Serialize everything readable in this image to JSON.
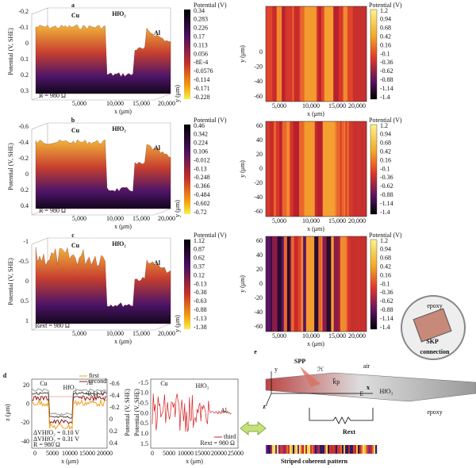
{
  "surfaces": [
    {
      "panel": "a",
      "y_axis_title": "Potential (V, SHE)",
      "y_ticks": [
        "-0.2",
        "-0.1",
        "0",
        "0.1",
        "0.2",
        "0.3"
      ],
      "materials": [
        "Cu",
        "HfO₂",
        "Al"
      ],
      "resistance": "R = 980 Ω",
      "x_ticks": [
        "5,000",
        "10,000",
        "15,000",
        "20,000"
      ],
      "x_axis_title": "x (μm)",
      "depth_axis_title": "y (μm)",
      "colorbar": {
        "title": "Potential (V)",
        "ticks": [
          "0.34",
          "0.283",
          "0.226",
          "0.17",
          "0.113",
          "0.056",
          "-8E-4",
          "-0.0576",
          "-0.114",
          "-0.171",
          "-0.228"
        ]
      }
    },
    {
      "panel": "b",
      "y_axis_title": "Potential (V, SHE)",
      "y_ticks": [
        "-0.6",
        "-0.4",
        "-0.2",
        "0",
        "0.2",
        "0.4"
      ],
      "materials": [
        "Cu",
        "HfO₂",
        "Al"
      ],
      "resistance": "R = 980 Ω",
      "x_ticks": [
        "5,000",
        "10,000",
        "15,000",
        "20,000"
      ],
      "x_axis_title": "x (μm)",
      "depth_axis_title": "y (μm)",
      "colorbar": {
        "title": "Potential (V)",
        "ticks": [
          "0.46",
          "0.342",
          "0.224",
          "0.106",
          "-0.012",
          "-0.13",
          "-0.248",
          "-0.366",
          "-0.484",
          "-0.602",
          "-0.72"
        ]
      }
    },
    {
      "panel": "c",
      "y_axis_title": "Potential (V, SHE)",
      "y_ticks": [
        "-1",
        "-0.5",
        "0",
        "0.5",
        "1"
      ],
      "materials": [
        "Cu",
        "HfO₂",
        "Al"
      ],
      "resistance": "Rext = 980 Ω",
      "x_ticks": [
        "5,000",
        "10,000",
        "15,000",
        "20,000"
      ],
      "x_axis_title": "x (μm)",
      "depth_axis_title": "y (μm)",
      "colorbar": {
        "title": "Potential (V)",
        "ticks": [
          "1.12",
          "0.87",
          "0.62",
          "0.37",
          "0.12",
          "-0.13",
          "-0.38",
          "-0.63",
          "-0.88",
          "-1.13",
          "-1.38"
        ]
      }
    }
  ],
  "maps": [
    {
      "y_axis_title": "y (μm)",
      "y_ticks": [
        "0",
        "-20",
        "-40",
        "-60"
      ],
      "x_ticks": [
        "5,000",
        "10,000",
        "15,000",
        "20,000"
      ],
      "x_axis_title": "x (μm)",
      "colorbar": {
        "title": "Potential (V)",
        "ticks": [
          "1.2",
          "0.94",
          "0.68",
          "0.42",
          "0.16",
          "-0.1",
          "-0.36",
          "-0.62",
          "-0.88",
          "-1.14",
          "-1.4"
        ]
      }
    },
    {
      "y_axis_title": "y (μm)",
      "y_ticks": [
        "60",
        "40",
        "20",
        "0",
        "-20",
        "-40",
        "-60"
      ],
      "x_ticks": [
        "5,000",
        "10,000",
        "15,000",
        "20,000"
      ],
      "x_axis_title": "x (μm)",
      "colorbar": {
        "title": "Potential (V)",
        "ticks": [
          "1.2",
          "0.94",
          "0.68",
          "0.42",
          "0.16",
          "-0.1",
          "-0.36",
          "-0.62",
          "-0.88",
          "-1.14",
          "-1.4"
        ]
      }
    },
    {
      "y_axis_title": "y (μm)",
      "y_ticks": [
        "60",
        "40",
        "20",
        "0",
        "-20",
        "-40",
        "-60"
      ],
      "x_ticks": [
        "5,000",
        "10,000",
        "15,000",
        "20,000"
      ],
      "x_axis_title": "x (μm)",
      "colorbar": {
        "title": "Potential (V)",
        "ticks": [
          "1.2",
          "0.94",
          "0.68",
          "0.42",
          "0.16",
          "-0.1",
          "-0.36",
          "-0.62",
          "-0.88",
          "-1.14",
          "-1.4"
        ]
      }
    }
  ],
  "panel_d": {
    "label": "d",
    "left": {
      "y_axis_title": "z (μm)",
      "y_ticks": [
        "20",
        "0",
        "-20",
        "-40"
      ],
      "y2_axis_title": "Potential (V, SHE)",
      "y2_ticks": [
        "-0.6",
        "-0.4",
        "-0.2",
        "0",
        "0.2",
        "0.4"
      ],
      "x_ticks": [
        "0",
        "5000",
        "10000",
        "15000",
        "20000"
      ],
      "x_axis_title": "x (μm)",
      "materials": [
        "Cu",
        "HfO₂",
        "Al"
      ],
      "legend": [
        "first",
        "second"
      ],
      "annotation": "-0.11 V",
      "delta_1": "ΔVHfO₂ = 0.10 V",
      "delta_2": "ΔVHfO₂ = 0.31 V",
      "resistance": "R = 980 Ω"
    },
    "right": {
      "y_axis_title": "Potential (V, SHE)",
      "y_ticks": [
        "-1.5",
        "-1.0",
        "-0.5",
        "0.0",
        "0.5",
        "1.0",
        "1.5"
      ],
      "x_ticks": [
        "0",
        "5000",
        "10000",
        "15000",
        "20000",
        "25000"
      ],
      "x_axis_title": "x (μm)",
      "materials": [
        "Cu",
        "HfO₂",
        "Al"
      ],
      "legend": [
        "third"
      ],
      "resistance": "Rext = 980 Ω"
    }
  },
  "panel_e": {
    "label": "e",
    "spp": "SPP",
    "air": "air",
    "hfo2": "HfO₂",
    "epoxy_bottom": "epoxy",
    "epoxy_top": "epoxy",
    "rext": "Rext",
    "skp": "SKP",
    "connection": "connection",
    "pattern": "Striped coherent pattern",
    "axis_y": "y",
    "axis_x": "x",
    "axis_z": "z",
    "field_h": "ℋ",
    "wavevector": "k⃗p",
    "field_e": "E"
  }
}
